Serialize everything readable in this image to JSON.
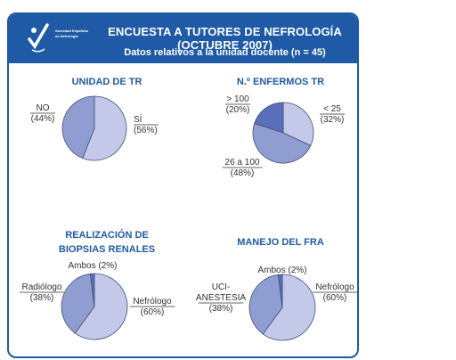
{
  "header": {
    "title": "ENCUESTA A TUTORES DE NEFROLOGÍA (OCTUBRE 2007)",
    "subtitle": "Datos relativos a la unidad docente (n = 45)",
    "logo_text": "Sociedad Española de Nefrología"
  },
  "colors": {
    "blue_dark": "#1f5aa6",
    "slice_dark": "#7e8fc6",
    "slice_light": "#c4c9ea",
    "outline": "#44507a"
  },
  "chart_data": [
    {
      "type": "pie",
      "title": "UNIDAD DE TR",
      "slices": [
        {
          "label": "SÍ",
          "pct": "(56%)",
          "value": 56,
          "color": "#c4c9ea"
        },
        {
          "label": "NO",
          "pct": "(44%)",
          "value": 44,
          "color": "#8f9dd0"
        }
      ]
    },
    {
      "type": "pie",
      "title": "N.º ENFERMOS TR",
      "slices": [
        {
          "label": "< 25",
          "pct": "(32%)",
          "value": 32,
          "color": "#c4c9ea"
        },
        {
          "label": "26 a 100",
          "pct": "(48%)",
          "value": 48,
          "color": "#8f9dd0"
        },
        {
          "label": "> 100",
          "pct": "(20%)",
          "value": 20,
          "color": "#5a6fb8"
        }
      ]
    },
    {
      "type": "pie",
      "title": "REALIZACIÓN DE BIOPSIAS RENALES",
      "title_lines": [
        "REALIZACIÓN DE",
        "BIOPSIAS RENALES"
      ],
      "slices": [
        {
          "label": "Nefrólogo",
          "pct": "(60%)",
          "value": 60,
          "color": "#c4c9ea"
        },
        {
          "label": "Radiólogo",
          "pct": "(38%)",
          "value": 38,
          "color": "#8f9dd0"
        },
        {
          "label": "Ambos (2%)",
          "pct": "",
          "value": 2,
          "color": "#5a6fb8"
        }
      ]
    },
    {
      "type": "pie",
      "title": "MANEJO DEL FRA",
      "slices": [
        {
          "label": "Nefrólogo",
          "pct": "(60%)",
          "value": 60,
          "color": "#c4c9ea"
        },
        {
          "label": "UCI-ANESTESIA",
          "label_lines": [
            "UCI-",
            "ANESTESIA"
          ],
          "pct": "(38%)",
          "value": 38,
          "color": "#8f9dd0"
        },
        {
          "label": "Ambos (2%)",
          "pct": "",
          "value": 2,
          "color": "#5a6fb8"
        }
      ]
    }
  ]
}
